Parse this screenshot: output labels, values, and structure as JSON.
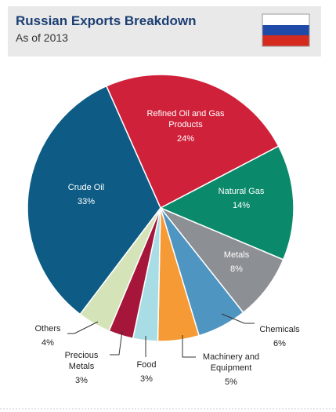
{
  "chart_data": {
    "type": "pie",
    "title": "Russian Exports Breakdown",
    "subtitle": "As of 2013",
    "categories": [
      "Refined Oil and Gas Products",
      "Natural Gas",
      "Metals",
      "Chemicals",
      "Machinery and Equipment",
      "Food",
      "Precious Metals",
      "Others",
      "Crude Oil"
    ],
    "values": [
      24,
      14,
      8,
      6,
      5,
      3,
      3,
      4,
      33
    ],
    "value_labels": [
      "24%",
      "14%",
      "8%",
      "6%",
      "5%",
      "3%",
      "3%",
      "4%",
      "33%"
    ],
    "colors": [
      "#d0213a",
      "#0b8a6b",
      "#8c8f93",
      "#4f95c2",
      "#f59a35",
      "#a9dde6",
      "#a5163a",
      "#d5e4b8",
      "#0e5c86"
    ]
  }
}
